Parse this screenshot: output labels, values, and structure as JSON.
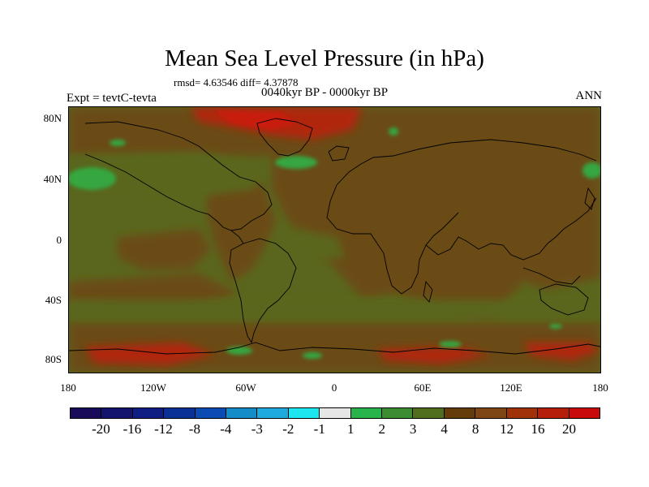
{
  "title": "Mean Sea Level Pressure (in hPa)",
  "stats": "rmsd= 4.63546 diff= 4.37878",
  "period": "0040kyr BP - 0000kyr BP",
  "experiment": "Expt = tevtC-tevta",
  "season": "ANN",
  "lat_labels": [
    "80N",
    "40N",
    "0",
    "40S",
    "80S"
  ],
  "lon_labels": [
    "180",
    "120W",
    "60W",
    "0",
    "60E",
    "120E",
    "180"
  ],
  "colorbar": {
    "colors": [
      "#1a0a5a",
      "#14146e",
      "#0f1e82",
      "#0a3296",
      "#0a4bb4",
      "#148cc8",
      "#1eaadc",
      "#1ee6f0",
      "#e6e6e6",
      "#28b44b",
      "#3c8c32",
      "#506e1e",
      "#643c0a",
      "#7d4614",
      "#a0320a",
      "#b41e0a",
      "#c80a0a"
    ],
    "labels": [
      "-20",
      "-16",
      "-12",
      "-8",
      "-4",
      "-3",
      "-2",
      "-1",
      "1",
      "2",
      "3",
      "4",
      "8",
      "12",
      "16",
      "20"
    ]
  },
  "field_colors": {
    "base_olive": "#5a661e",
    "brown": "#6b4b12",
    "red": "#b0260c",
    "green": "#35a641"
  }
}
